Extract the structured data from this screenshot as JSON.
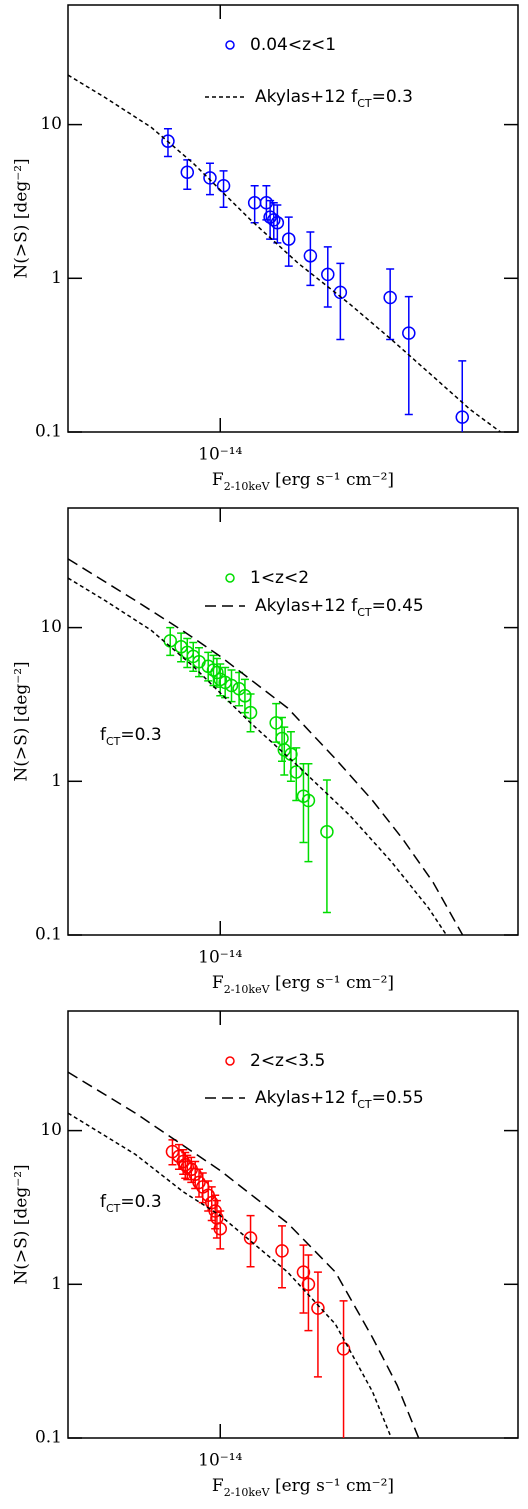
{
  "chart_data": [
    {
      "type": "scatter",
      "xscale": "log",
      "yscale": "log",
      "xlim": [
        4e-15,
        6e-14
      ],
      "ylim": [
        0.1,
        60
      ],
      "xticks": [
        {
          "value": 1e-14,
          "label": "10⁻¹⁴"
        }
      ],
      "yticks": [
        0.1,
        1,
        10
      ],
      "xlabel": [
        {
          "text": "F"
        },
        {
          "text": "2-10keV",
          "sub": true
        },
        {
          "text": " [erg s⁻¹ cm⁻²]"
        }
      ],
      "ylabel": "N(>S) [deg⁻²]",
      "series": [
        {
          "name": "0.04<z<1",
          "color": "#0000ff",
          "x": [
            7.3e-15,
            8.2e-15,
            9.4e-15,
            1.02e-14,
            1.23e-14,
            1.32e-14,
            1.35e-14,
            1.38e-14,
            1.41e-14,
            1.51e-14,
            1.72e-14,
            1.91e-14,
            2.06e-14,
            2.78e-14,
            3.11e-14,
            4.29e-14
          ],
          "values": [
            7.8,
            4.9,
            4.5,
            4.0,
            3.1,
            3.1,
            2.5,
            2.4,
            2.3,
            1.8,
            1.4,
            1.06,
            0.81,
            0.75,
            0.44,
            0.125
          ],
          "err_minus": [
            1.6,
            1.1,
            1.0,
            1.1,
            0.8,
            0.7,
            0.7,
            0.6,
            0.6,
            0.6,
            0.5,
            0.41,
            0.41,
            0.35,
            0.31,
            0.075
          ],
          "err_plus": [
            1.6,
            1.0,
            1.1,
            1.0,
            0.9,
            0.9,
            0.7,
            0.7,
            0.7,
            0.7,
            0.6,
            0.54,
            0.44,
            0.4,
            0.32,
            0.165
          ]
        },
        {
          "name": [
            {
              "text": "Akylas+12 f"
            },
            {
              "text": "CT",
              "sub": true
            },
            {
              "text": "=0.3"
            }
          ],
          "type": "line",
          "linestyle": "dashed",
          "color": "#000000",
          "x": [
            4e-15,
            5e-15,
            6.6e-15,
            8.5e-15,
            1.2e-14,
            1.6e-14,
            2.18e-14,
            2.8e-14,
            3.53e-14,
            4.5e-14,
            5.4e-14
          ],
          "values": [
            21,
            15,
            9.6,
            5.6,
            2.4,
            1.25,
            0.68,
            0.4,
            0.24,
            0.14,
            0.1
          ]
        }
      ]
    },
    {
      "type": "scatter",
      "xscale": "log",
      "yscale": "log",
      "xlim": [
        4e-15,
        6e-14
      ],
      "ylim": [
        0.1,
        60
      ],
      "xticks": [
        {
          "value": 1e-14,
          "label": "10⁻¹⁴"
        }
      ],
      "yticks": [
        0.1,
        1,
        10
      ],
      "xlabel": [
        {
          "text": "F"
        },
        {
          "text": "2-10keV",
          "sub": true
        },
        {
          "text": " [erg s⁻¹ cm⁻²]"
        }
      ],
      "ylabel": "N(>S) [deg⁻²]",
      "annotations": [
        [
          {
            "text": "f"
          },
          {
            "text": "CT",
            "sub": true
          },
          {
            "text": "=0.3"
          }
        ]
      ],
      "series": [
        {
          "name": "1<z<2",
          "color": "#00dd00",
          "x": [
            7.4e-15,
            7.9e-15,
            8.2e-15,
            8.5e-15,
            8.8e-15,
            9.3e-15,
            9.6e-15,
            9.8e-15,
            1e-14,
            1.03e-14,
            1.07e-14,
            1.12e-14,
            1.16e-14,
            1.2e-14,
            1.4e-14,
            1.45e-14,
            1.47e-14,
            1.53e-14,
            1.58e-14,
            1.65e-14,
            1.7e-14,
            1.9e-14
          ],
          "values": [
            8.2,
            7.5,
            6.9,
            6.5,
            6.0,
            5.6,
            5.3,
            5.1,
            4.6,
            4.4,
            4.2,
            4.0,
            3.6,
            2.8,
            2.4,
            1.9,
            1.6,
            1.5,
            1.15,
            0.8,
            0.75,
            0.47
          ],
          "err_minus": [
            1.6,
            1.5,
            1.4,
            1.3,
            1.2,
            1.1,
            1.1,
            1.0,
            1.0,
            0.9,
            0.9,
            0.9,
            0.8,
            0.7,
            0.6,
            0.55,
            0.5,
            0.5,
            0.4,
            0.4,
            0.45,
            0.33
          ],
          "err_plus": [
            1.8,
            1.7,
            1.6,
            1.5,
            1.4,
            1.3,
            1.3,
            1.2,
            1.2,
            1.1,
            1.1,
            1.1,
            1.0,
            0.9,
            0.8,
            0.7,
            0.65,
            0.6,
            0.5,
            0.5,
            0.55,
            0.55
          ]
        },
        {
          "name": [
            {
              "text": "Akylas+12 f"
            },
            {
              "text": "CT",
              "sub": true
            },
            {
              "text": "=0.45"
            }
          ],
          "type": "line",
          "linestyle": "longdash",
          "color": "#000000",
          "x": [
            4e-15,
            6e-15,
            8e-15,
            1e-14,
            1.5e-14,
            2e-14,
            2.5e-14,
            3e-14,
            3.6e-14,
            4.3e-14
          ],
          "values": [
            28,
            15,
            9.5,
            6.5,
            3.0,
            1.4,
            0.75,
            0.42,
            0.22,
            0.1
          ]
        },
        {
          "type": "line",
          "linestyle": "dashed",
          "color": "#000000",
          "x": [
            4e-15,
            5e-15,
            6.6e-15,
            8.5e-15,
            1.2e-14,
            1.6e-14,
            2.18e-14,
            2.8e-14,
            3.5e-14,
            3.9e-14
          ],
          "values": [
            21,
            15,
            9.6,
            5.6,
            2.4,
            1.25,
            0.6,
            0.3,
            0.15,
            0.1
          ]
        }
      ]
    },
    {
      "type": "scatter",
      "xscale": "log",
      "yscale": "log",
      "xlim": [
        4e-15,
        6e-14
      ],
      "ylim": [
        0.1,
        60
      ],
      "xticks": [
        {
          "value": 1e-14,
          "label": "10⁻¹⁴"
        }
      ],
      "yticks": [
        0.1,
        1,
        10
      ],
      "xlabel": [
        {
          "text": "F"
        },
        {
          "text": "2-10keV",
          "sub": true
        },
        {
          "text": " [erg s⁻¹ cm⁻²]"
        }
      ],
      "ylabel": "N(>S) [deg⁻²]",
      "annotations": [
        [
          {
            "text": "f"
          },
          {
            "text": "CT",
            "sub": true
          },
          {
            "text": "=0.3"
          }
        ]
      ],
      "series": [
        {
          "name": "2<z<3.5",
          "color": "#ff0000",
          "x": [
            7.5e-15,
            7.8e-15,
            8e-15,
            8.1e-15,
            8.2e-15,
            8.4e-15,
            8.6e-15,
            8.8e-15,
            9e-15,
            9.3e-15,
            9.5e-15,
            9.7e-15,
            9.8e-15,
            1e-14,
            1.2e-14,
            1.45e-14,
            1.65e-14,
            1.7e-14,
            1.8e-14,
            2.1e-14
          ],
          "values": [
            7.3,
            6.8,
            6.3,
            6.0,
            5.8,
            5.6,
            5.2,
            4.6,
            4.3,
            3.8,
            3.4,
            3.0,
            2.7,
            2.3,
            2.0,
            1.65,
            1.2,
            1.0,
            0.7,
            0.38
          ],
          "err_minus": [
            1.3,
            1.2,
            1.1,
            1.1,
            1.0,
            1.0,
            1.0,
            0.9,
            0.9,
            0.8,
            0.8,
            0.7,
            0.7,
            0.6,
            0.7,
            0.7,
            0.55,
            0.5,
            0.45,
            0.33
          ],
          "err_plus": [
            1.4,
            1.3,
            1.2,
            1.2,
            1.1,
            1.1,
            1.1,
            1.0,
            1.0,
            0.9,
            0.9,
            0.8,
            0.8,
            0.7,
            0.8,
            0.75,
            0.6,
            0.55,
            0.5,
            0.4
          ]
        },
        {
          "name": [
            {
              "text": "Akylas+12 f"
            },
            {
              "text": "CT",
              "sub": true
            },
            {
              "text": "=0.55"
            }
          ],
          "type": "line",
          "linestyle": "longdash",
          "color": "#000000",
          "x": [
            4e-15,
            6e-15,
            8e-15,
            1e-14,
            1.5e-14,
            2e-14,
            2.5e-14,
            2.9e-14,
            3.3e-14
          ],
          "values": [
            24,
            13,
            8,
            5.5,
            2.5,
            1.2,
            0.45,
            0.22,
            0.1
          ]
        },
        {
          "type": "line",
          "linestyle": "dashed",
          "color": "#000000",
          "x": [
            4e-15,
            6e-15,
            8e-15,
            1e-14,
            1.5e-14,
            2e-14,
            2.5e-14,
            2.8e-14
          ],
          "values": [
            13,
            7,
            4,
            2.8,
            1.2,
            0.55,
            0.2,
            0.1
          ]
        }
      ]
    }
  ]
}
